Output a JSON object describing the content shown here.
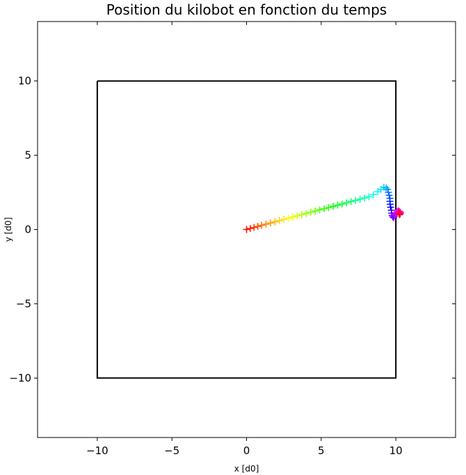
{
  "chart_data": {
    "type": "scatter",
    "title": "Position du kilobot en fonction du temps",
    "xlabel": "x [d0]",
    "ylabel": "y [d0]",
    "xlim": [
      -14,
      14
    ],
    "ylim": [
      -14,
      14
    ],
    "xticks": [
      -10,
      -5,
      0,
      5,
      10
    ],
    "yticks": [
      -10,
      -5,
      0,
      5,
      10
    ],
    "xtick_labels": [
      "−10",
      "−5",
      "0",
      "5",
      "10"
    ],
    "ytick_labels": [
      "−10",
      "−5",
      "0",
      "5",
      "10"
    ],
    "grid": false,
    "marker": "+",
    "color_mapping": "time (hsv colormap, red start to red end)",
    "boundary": {
      "x": [
        -10,
        10,
        10,
        -10,
        -10
      ],
      "y": [
        10,
        10,
        -10,
        -10,
        10
      ],
      "color": "#000000"
    },
    "trajectory": {
      "x": [
        0.0,
        0.25,
        0.5,
        0.75,
        1.0,
        1.3,
        1.6,
        1.9,
        2.2,
        2.5,
        2.8,
        3.1,
        3.4,
        3.7,
        4.0,
        4.3,
        4.6,
        4.9,
        5.2,
        5.5,
        5.8,
        6.1,
        6.4,
        6.7,
        7.0,
        7.3,
        7.6,
        7.9,
        8.2,
        8.5,
        8.8,
        9.0,
        9.2,
        9.35,
        9.45,
        9.5,
        9.55,
        9.6,
        9.6,
        9.62,
        9.65,
        9.7,
        9.72,
        9.75,
        9.8,
        9.85,
        9.9,
        9.95,
        10.0,
        10.05,
        10.1,
        10.15,
        10.2,
        10.25,
        10.3,
        10.3,
        10.28,
        10.25,
        10.22,
        10.2
      ],
      "y": [
        0.0,
        0.07,
        0.14,
        0.21,
        0.28,
        0.36,
        0.44,
        0.52,
        0.6,
        0.68,
        0.76,
        0.84,
        0.92,
        1.0,
        1.08,
        1.16,
        1.24,
        1.32,
        1.4,
        1.48,
        1.56,
        1.64,
        1.72,
        1.8,
        1.88,
        1.96,
        2.04,
        2.12,
        2.2,
        2.35,
        2.55,
        2.7,
        2.85,
        2.8,
        2.7,
        2.5,
        2.3,
        2.1,
        1.9,
        1.7,
        1.5,
        1.3,
        1.1,
        0.95,
        0.85,
        0.8,
        0.9,
        1.0,
        1.1,
        1.15,
        1.2,
        1.25,
        1.25,
        1.2,
        1.15,
        1.1,
        1.05,
        1.0,
        1.05,
        1.1
      ]
    }
  }
}
